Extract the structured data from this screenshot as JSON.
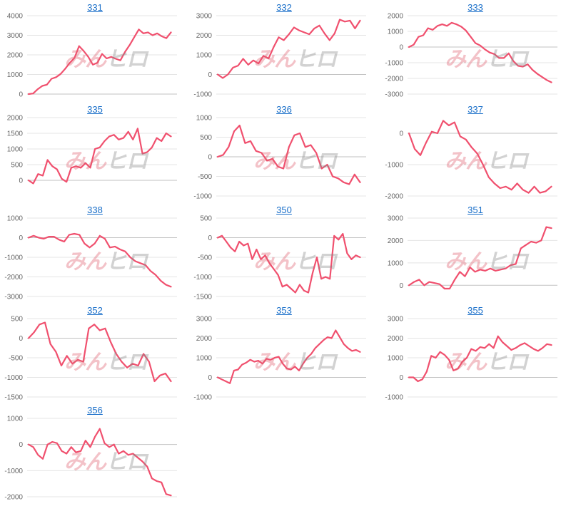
{
  "colors": {
    "series": "#f0506e",
    "title_link": "#1a6fc9"
  },
  "watermark": {
    "part1": "みん",
    "part2": "ヒロ"
  },
  "chart_data": [
    {
      "type": "line",
      "title": "331",
      "ylim": [
        0,
        4000
      ],
      "yticks": [
        0,
        1000,
        2000,
        3000,
        4000
      ],
      "y": [
        0,
        30,
        250,
        420,
        480,
        780,
        860,
        1030,
        1300,
        1600,
        1850,
        2450,
        2200,
        1900,
        1500,
        1600,
        2050,
        1820,
        1900,
        1800,
        1720,
        2150,
        2500,
        2900,
        3300,
        3100,
        3150,
        3000,
        3100,
        2950,
        2850,
        3150
      ]
    },
    {
      "type": "line",
      "title": "332",
      "ylim": [
        -1000,
        3000
      ],
      "yticks": [
        -1000,
        0,
        1000,
        2000,
        3000
      ],
      "y": [
        0,
        -180,
        0,
        350,
        450,
        800,
        500,
        720,
        560,
        950,
        820,
        1400,
        1900,
        1750,
        2050,
        2400,
        2250,
        2150,
        2050,
        2350,
        2500,
        2100,
        1750,
        2100,
        2800,
        2700,
        2750,
        2350,
        2750
      ]
    },
    {
      "type": "line",
      "title": "333",
      "ylim": [
        -3000,
        2000
      ],
      "yticks": [
        -3000,
        -2000,
        -1000,
        0,
        1000,
        2000
      ],
      "y": [
        0,
        150,
        650,
        750,
        1200,
        1100,
        1350,
        1450,
        1350,
        1550,
        1450,
        1300,
        1050,
        650,
        250,
        100,
        -150,
        -350,
        -450,
        -700,
        -700,
        -400,
        -900,
        -1200,
        -1250,
        -1100,
        -1450,
        -1700,
        -1900,
        -2100,
        -2250
      ]
    },
    {
      "type": "line",
      "title": "335",
      "ylim": [
        -500,
        2000
      ],
      "yticks": [
        0,
        500,
        1000,
        1500,
        2000
      ],
      "y": [
        0,
        -100,
        200,
        150,
        650,
        450,
        350,
        50,
        -50,
        400,
        450,
        400,
        550,
        400,
        1000,
        1050,
        1250,
        1400,
        1450,
        1300,
        1350,
        1550,
        1300,
        1650,
        850,
        900,
        1050,
        1350,
        1250,
        1500,
        1400
      ]
    },
    {
      "type": "line",
      "title": "336",
      "ylim": [
        -1000,
        1000
      ],
      "yticks": [
        -1000,
        -500,
        0,
        500,
        1000
      ],
      "y": [
        0,
        50,
        250,
        650,
        800,
        350,
        400,
        150,
        100,
        -100,
        -50,
        -250,
        -300,
        250,
        550,
        600,
        250,
        300,
        100,
        -300,
        -200,
        -500,
        -550,
        -650,
        -700,
        -450,
        -650
      ]
    },
    {
      "type": "line",
      "title": "337",
      "ylim": [
        -2000,
        500
      ],
      "yticks": [
        -2000,
        -1000,
        0
      ],
      "y": [
        0,
        -500,
        -700,
        -300,
        50,
        0,
        400,
        250,
        350,
        -100,
        -200,
        -450,
        -650,
        -1000,
        -1400,
        -1600,
        -1750,
        -1700,
        -1800,
        -1600,
        -1800,
        -1900,
        -1700,
        -1900,
        -1850,
        -1700
      ]
    },
    {
      "type": "line",
      "title": "338",
      "ylim": [
        -3000,
        1000
      ],
      "yticks": [
        -3000,
        -2000,
        -1000,
        0,
        1000
      ],
      "y": [
        0,
        100,
        0,
        -50,
        50,
        50,
        -100,
        -200,
        150,
        200,
        150,
        -300,
        -500,
        -300,
        100,
        -50,
        -500,
        -450,
        -600,
        -700,
        -1000,
        -1200,
        -1300,
        -1400,
        -1700,
        -1900,
        -2200,
        -2400,
        -2500
      ]
    },
    {
      "type": "line",
      "title": "350",
      "ylim": [
        -1500,
        500
      ],
      "yticks": [
        -1500,
        -1000,
        -500,
        0,
        500
      ],
      "y": [
        0,
        50,
        -100,
        -250,
        -350,
        -100,
        -200,
        -150,
        -550,
        -300,
        -550,
        -450,
        -650,
        -800,
        -950,
        -1250,
        -1200,
        -1300,
        -1400,
        -1200,
        -1350,
        -1400,
        -900,
        -500,
        -1050,
        -1000,
        -1050,
        50,
        -50,
        100,
        -400,
        -550,
        -450,
        -500
      ]
    },
    {
      "type": "line",
      "title": "351",
      "ylim": [
        -500,
        3000
      ],
      "yticks": [
        0,
        1000,
        2000,
        3000
      ],
      "y": [
        0,
        150,
        250,
        0,
        150,
        100,
        50,
        -150,
        -150,
        250,
        600,
        400,
        800,
        600,
        700,
        650,
        750,
        650,
        700,
        750,
        900,
        950,
        1650,
        1800,
        1950,
        1900,
        2000,
        2600,
        2550
      ]
    },
    {
      "type": "line",
      "title": "352",
      "ylim": [
        -1500,
        500
      ],
      "yticks": [
        -1500,
        -1000,
        -500,
        0,
        500
      ],
      "y": [
        0,
        150,
        350,
        400,
        -150,
        -350,
        -700,
        -450,
        -650,
        -550,
        -600,
        250,
        350,
        200,
        250,
        -100,
        -400,
        -600,
        -750,
        -650,
        -700,
        -400,
        -600,
        -1100,
        -950,
        -900,
        -1100
      ]
    },
    {
      "type": "line",
      "title": "353",
      "ylim": [
        -1000,
        3000
      ],
      "yticks": [
        -1000,
        0,
        1000,
        2000,
        3000
      ],
      "y": [
        0,
        -100,
        -200,
        -300,
        350,
        400,
        650,
        750,
        900,
        800,
        850,
        700,
        950,
        900,
        1000,
        1050,
        700,
        450,
        400,
        550,
        350,
        700,
        1000,
        1200,
        1500,
        1700,
        1900,
        2050,
        2000,
        2400,
        2050,
        1700,
        1500,
        1350,
        1400,
        1300
      ]
    },
    {
      "type": "line",
      "title": "355",
      "ylim": [
        -1000,
        3000
      ],
      "yticks": [
        -1000,
        0,
        1000,
        2000,
        3000
      ],
      "y": [
        0,
        0,
        -200,
        -100,
        300,
        1100,
        1000,
        1300,
        1150,
        900,
        350,
        450,
        800,
        1000,
        1450,
        1350,
        1550,
        1500,
        1700,
        1500,
        2100,
        1800,
        1600,
        1400,
        1500,
        1650,
        1750,
        1600,
        1450,
        1350,
        1500,
        1700,
        1650
      ]
    },
    {
      "type": "line",
      "title": "356",
      "ylim": [
        -2000,
        1000
      ],
      "yticks": [
        -2000,
        -1000,
        0,
        1000
      ],
      "y": [
        0,
        -100,
        -400,
        -550,
        0,
        100,
        50,
        -250,
        -350,
        -100,
        -300,
        -250,
        150,
        -100,
        300,
        600,
        50,
        -100,
        0,
        -350,
        -250,
        -400,
        -350,
        -500,
        -650,
        -850,
        -1300,
        -1400,
        -1450,
        -1900,
        -1950
      ]
    }
  ]
}
